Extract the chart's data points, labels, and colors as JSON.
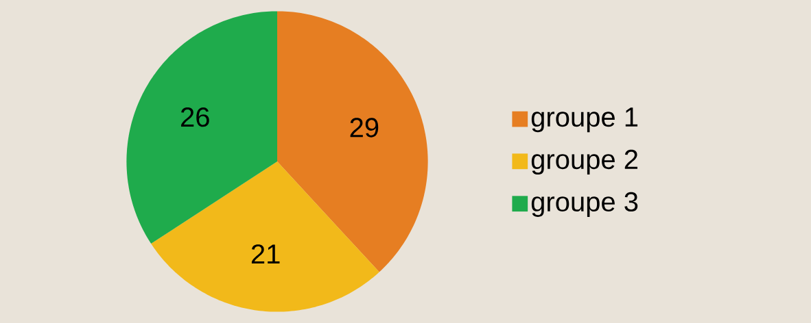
{
  "chart_data": {
    "type": "pie",
    "categories": [
      "groupe 1",
      "groupe 2",
      "groupe 3"
    ],
    "values": [
      29,
      21,
      26
    ],
    "colors": [
      "#e67e22",
      "#f2b91a",
      "#1fab4c"
    ],
    "data_labels": true,
    "legend": "right"
  }
}
